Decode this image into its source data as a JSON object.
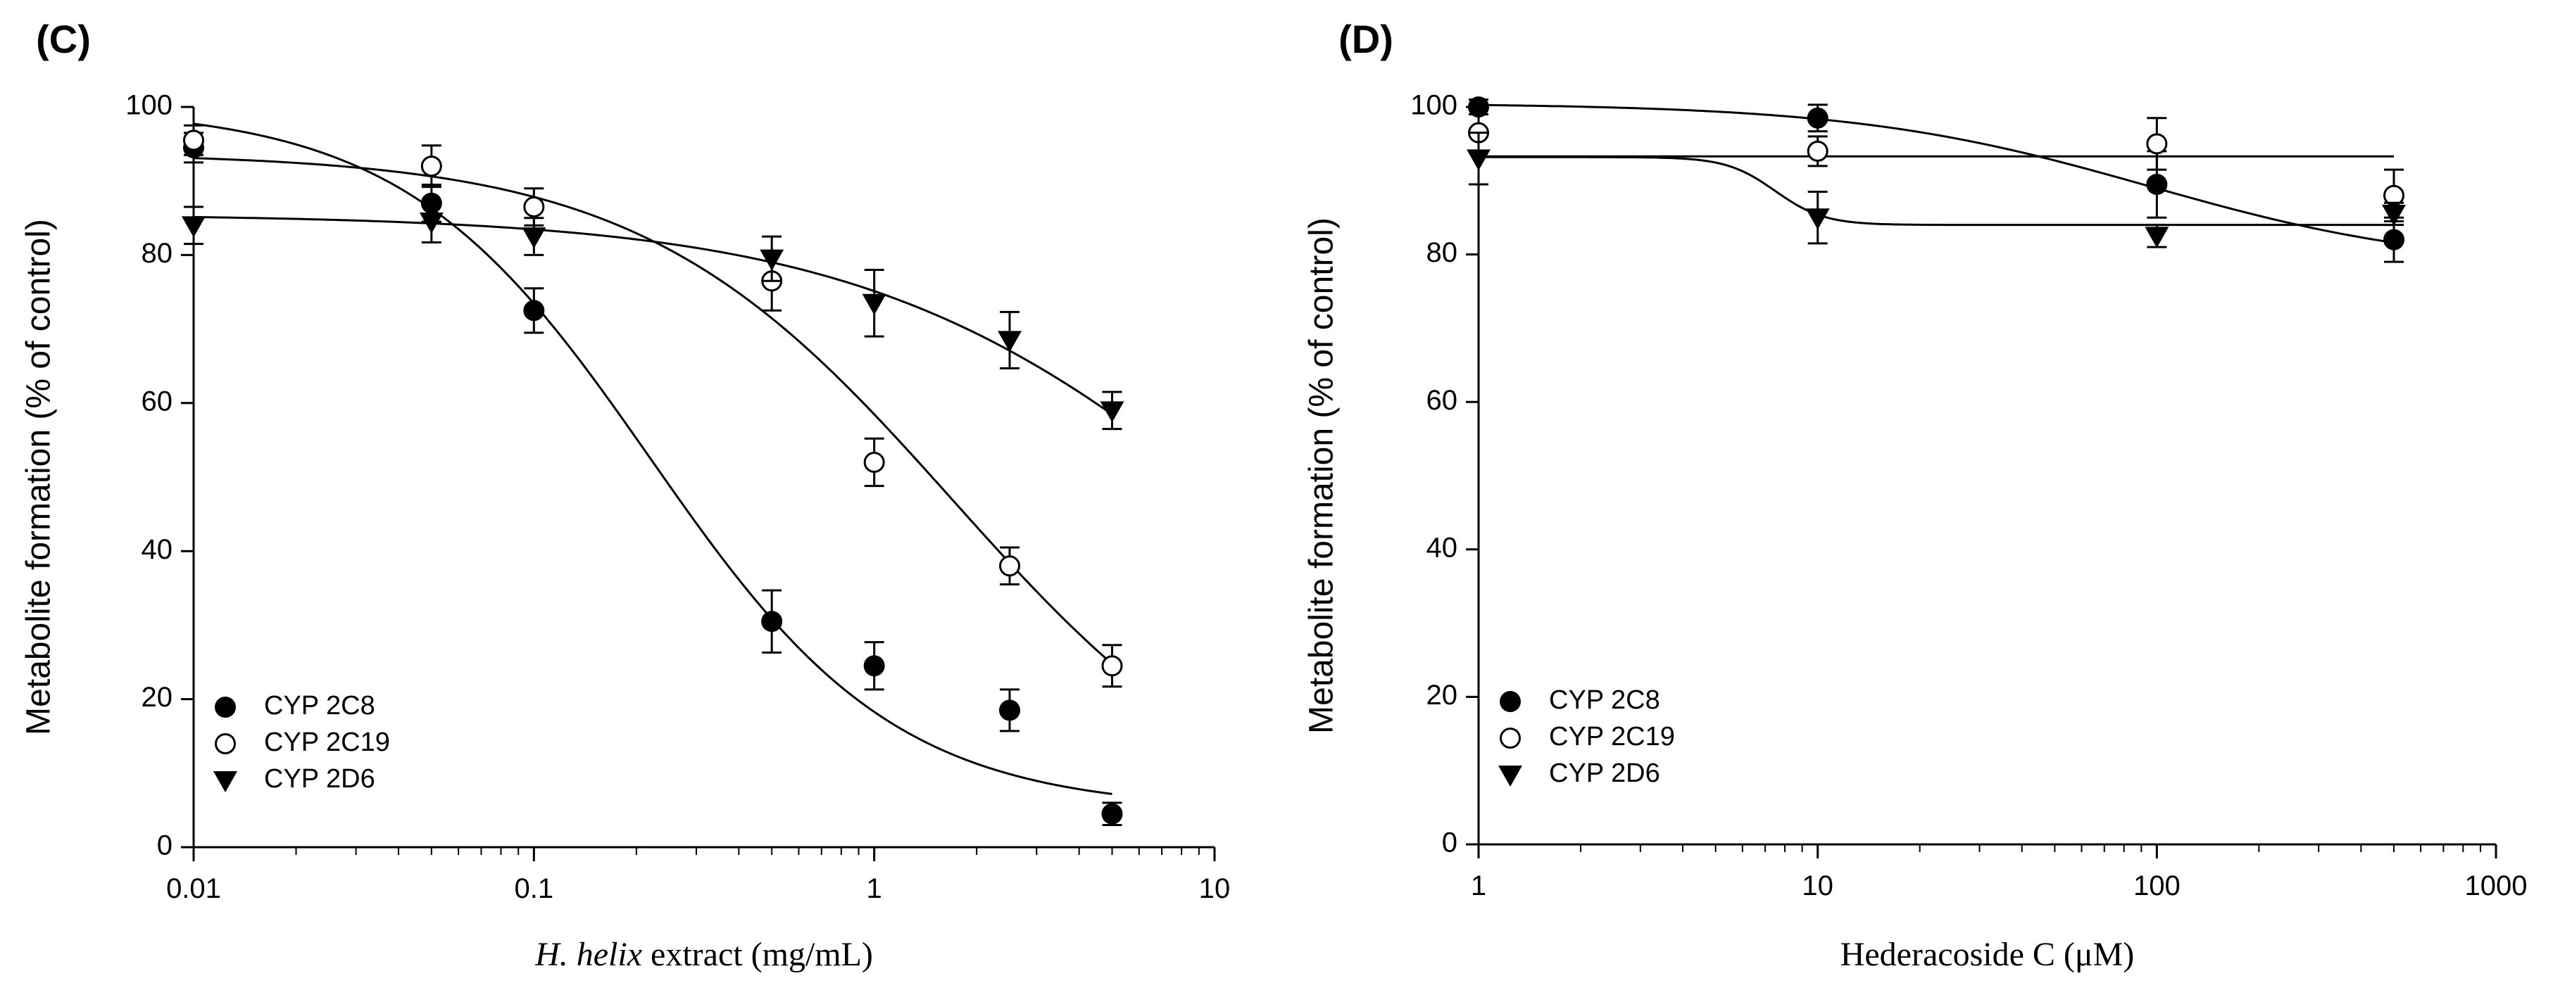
{
  "chart_data": [
    {
      "panel": "(C)",
      "type": "scatter",
      "xscale": "log",
      "xlim": [
        0.01,
        10
      ],
      "ylim": [
        0,
        100
      ],
      "x_ticks": [
        "0.01",
        "0.1",
        "1",
        "10"
      ],
      "y_ticks": [
        "0",
        "20",
        "40",
        "60",
        "80",
        "100"
      ],
      "ylabel": "Metabolite formation (% of control)",
      "xlabel_italic": "H. helix",
      "xlabel_rest": " extract (mg/mL)",
      "legend_position": "bottom-left",
      "series": [
        {
          "name": "CYP 2C8",
          "marker": "filled-circle",
          "points": [
            {
              "x": 0.01,
              "y": 94.5,
              "err": 2.0
            },
            {
              "x": 0.05,
              "y": 87.0,
              "err": 2.5
            },
            {
              "x": 0.1,
              "y": 72.5,
              "err": 3.0
            },
            {
              "x": 0.5,
              "y": 30.5,
              "err": 4.2
            },
            {
              "x": 1,
              "y": 24.5,
              "err": 3.2
            },
            {
              "x": 2.5,
              "y": 18.5,
              "err": 2.8
            },
            {
              "x": 5,
              "y": 4.5,
              "err": 1.5
            }
          ],
          "fit": {
            "top": 100,
            "bottom": 5,
            "ic50": 0.22,
            "hill": 1.2,
            "x_from": 0.01,
            "x_to": 5
          }
        },
        {
          "name": "CYP 2C19",
          "marker": "open-circle",
          "points": [
            {
              "x": 0.01,
              "y": 95.5,
              "err": 2.0
            },
            {
              "x": 0.05,
              "y": 92.0,
              "err": 2.8
            },
            {
              "x": 0.1,
              "y": 86.5,
              "err": 2.5
            },
            {
              "x": 0.5,
              "y": 76.5,
              "err": 4.0
            },
            {
              "x": 1,
              "y": 52.0,
              "err": 3.2
            },
            {
              "x": 2.5,
              "y": 38.0,
              "err": 2.5
            },
            {
              "x": 5,
              "y": 24.5,
              "err": 2.8
            }
          ],
          "fit": {
            "top": 93.8,
            "bottom": 0,
            "ic50": 1.7,
            "hill": 0.95,
            "x_from": 0.01,
            "x_to": 5
          }
        },
        {
          "name": "CYP 2D6",
          "marker": "filled-triangle-down",
          "points": [
            {
              "x": 0.01,
              "y": 84.0,
              "err": 2.5
            },
            {
              "x": 0.05,
              "y": 84.5,
              "err": 2.8
            },
            {
              "x": 0.1,
              "y": 82.5,
              "err": 2.5
            },
            {
              "x": 0.5,
              "y": 79.5,
              "err": 3.0
            },
            {
              "x": 1,
              "y": 73.5,
              "err": 4.5
            },
            {
              "x": 2.5,
              "y": 68.5,
              "err": 3.8
            },
            {
              "x": 5,
              "y": 59.0,
              "err": 2.5
            }
          ],
          "fit": {
            "top": 85.5,
            "bottom": 0,
            "ic50": 14,
            "hill": 0.75,
            "x_from": 0.01,
            "x_to": 5
          }
        }
      ]
    },
    {
      "panel": "(D)",
      "type": "scatter",
      "xscale": "log",
      "xlim": [
        1,
        1000
      ],
      "ylim": [
        0,
        100
      ],
      "x_ticks": [
        "1",
        "10",
        "100",
        "1000"
      ],
      "y_ticks": [
        "0",
        "20",
        "40",
        "60",
        "80",
        "100"
      ],
      "ylabel": "Metabolite formation (% of control)",
      "xlabel": "Hederacoside C (μM)",
      "legend_position": "bottom-left",
      "series": [
        {
          "name": "CYP 2C8",
          "marker": "filled-circle",
          "points": [
            {
              "x": 1,
              "y": 100.0,
              "err": 1.0
            },
            {
              "x": 10,
              "y": 98.5,
              "err": 1.8
            },
            {
              "x": 100,
              "y": 89.5,
              "err": 4.5
            },
            {
              "x": 500,
              "y": 82.0,
              "err": 3.0
            }
          ],
          "fit": {
            "top": 100.5,
            "bottom": 78,
            "ic50": 95,
            "hill": 1.0,
            "x_from": 1,
            "x_to": 500
          }
        },
        {
          "name": "CYP 2C19",
          "marker": "open-circle",
          "points": [
            {
              "x": 1,
              "y": 96.5,
              "err": 2.5
            },
            {
              "x": 10,
              "y": 94.0,
              "err": 2.0
            },
            {
              "x": 100,
              "y": 95.0,
              "err": 3.5
            },
            {
              "x": 500,
              "y": 88.0,
              "err": 3.5
            }
          ],
          "fit": {
            "flat": 93.3,
            "x_from": 1,
            "x_to": 500
          }
        },
        {
          "name": "CYP 2D6",
          "marker": "filled-triangle-down",
          "points": [
            {
              "x": 1,
              "y": 93.0,
              "err": 3.5
            },
            {
              "x": 10,
              "y": 85.0,
              "err": 3.5
            },
            {
              "x": 100,
              "y": 82.5,
              "err": 1.5
            },
            {
              "x": 500,
              "y": 85.5,
              "err": 1.5
            }
          ],
          "fit": {
            "top": 93.2,
            "bottom": 84.0,
            "ic50": 7.5,
            "hill": 6,
            "x_from": 1,
            "x_to": 500
          }
        }
      ]
    }
  ]
}
